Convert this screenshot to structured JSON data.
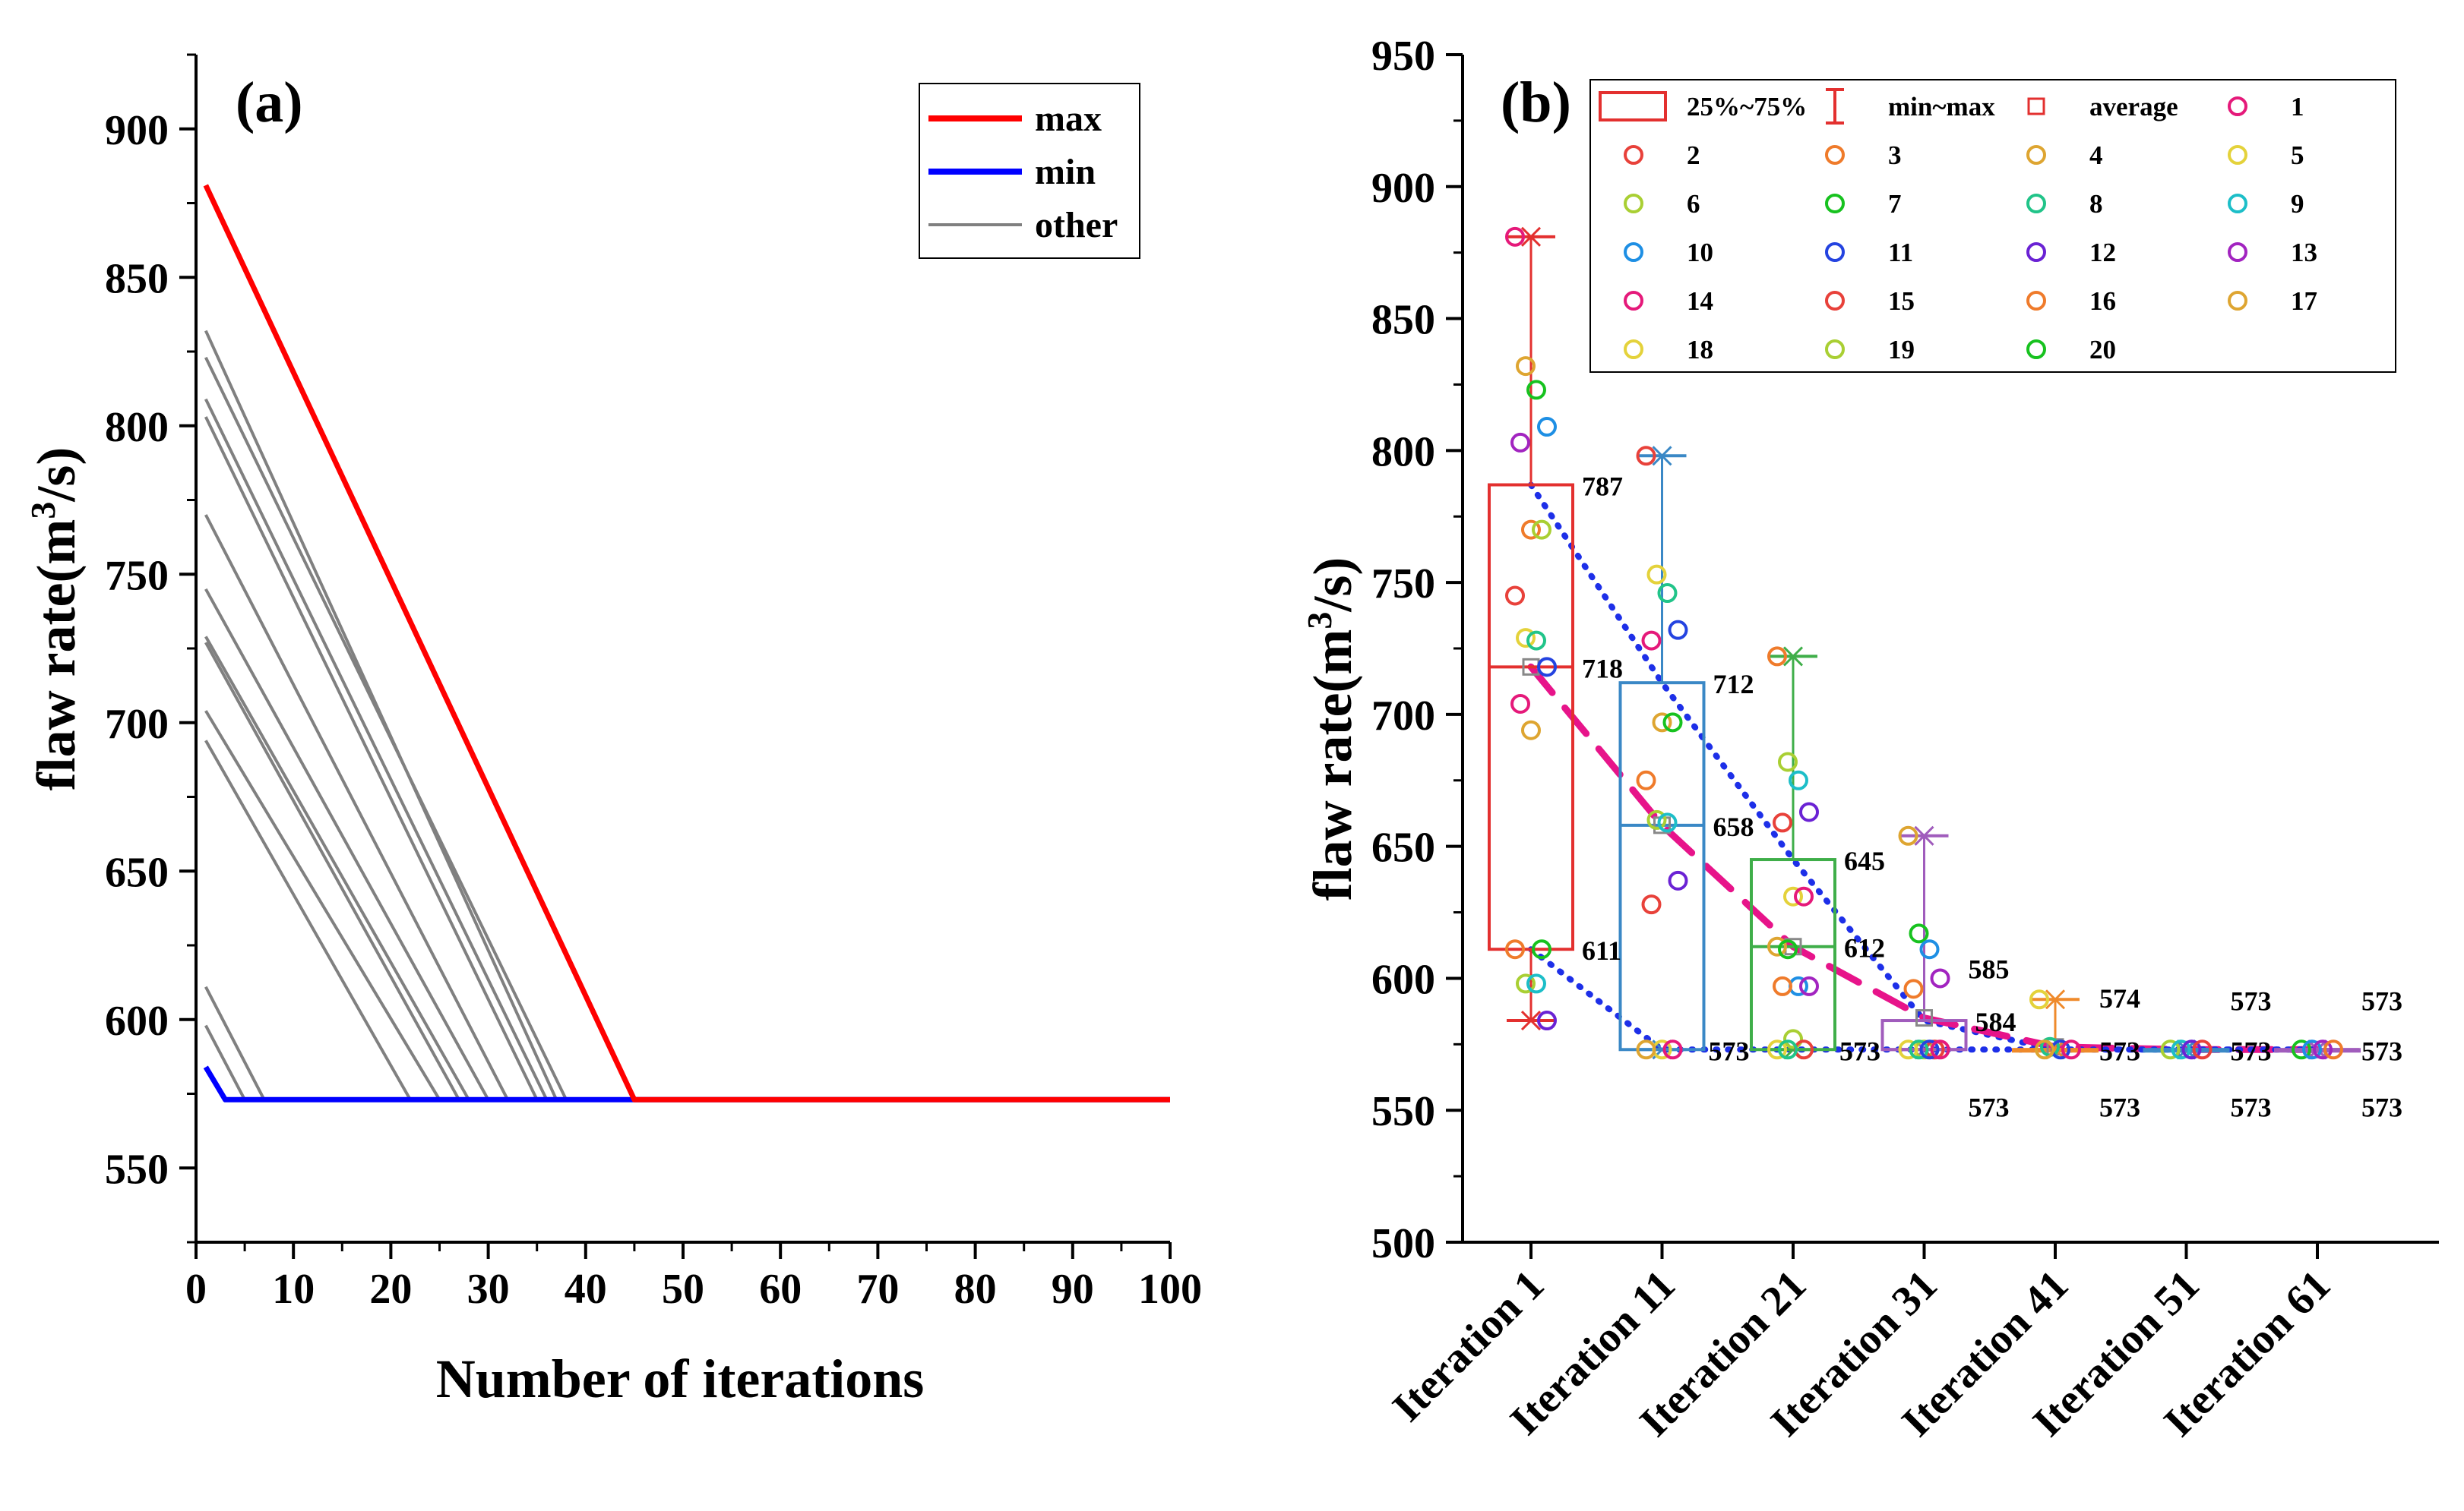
{
  "chart_data": [
    {
      "panel": "(a)",
      "type": "line",
      "xlabel": "Number of iterations",
      "ylabel_main": "flaw rate(m",
      "ylabel_sup": "3",
      "ylabel_end": "/s)",
      "xlim": [
        0,
        100
      ],
      "ylim": [
        525,
        925
      ],
      "xticks": [
        0,
        10,
        20,
        30,
        40,
        50,
        60,
        70,
        80,
        90,
        100
      ],
      "xtick_labels": [
        "0",
        "10",
        "20",
        "30",
        "40",
        "50",
        "60",
        "70",
        "80",
        "90",
        "100"
      ],
      "yticks": [
        550,
        600,
        650,
        700,
        750,
        800,
        850,
        900
      ],
      "ytick_labels": [
        "550",
        "600",
        "650",
        "700",
        "750",
        "800",
        "850",
        "900"
      ],
      "legend": [
        {
          "label": "max",
          "color": "#ff0000"
        },
        {
          "label": "min",
          "color": "#0000ff"
        },
        {
          "label": "other",
          "color": "#808080"
        }
      ],
      "converged_value": 573,
      "series": [
        {
          "name": "max",
          "color": "#ff0000",
          "points": [
            [
              1,
              881
            ],
            [
              45,
              573
            ],
            [
              100,
              573
            ]
          ]
        },
        {
          "name": "min",
          "color": "#0000ff",
          "points": [
            [
              1,
              584
            ],
            [
              3,
              573
            ],
            [
              100,
              573
            ]
          ]
        },
        {
          "name": "other",
          "color": "#808080",
          "points": [
            [
              1,
              832
            ],
            [
              37,
              573
            ],
            [
              100,
              573
            ]
          ]
        },
        {
          "name": "other",
          "color": "#808080",
          "points": [
            [
              1,
              823
            ],
            [
              38,
              573
            ],
            [
              100,
              573
            ]
          ]
        },
        {
          "name": "other",
          "color": "#808080",
          "points": [
            [
              1,
              809
            ],
            [
              36,
              573
            ],
            [
              100,
              573
            ]
          ]
        },
        {
          "name": "other",
          "color": "#808080",
          "points": [
            [
              1,
              803
            ],
            [
              35,
              573
            ],
            [
              100,
              573
            ]
          ]
        },
        {
          "name": "other",
          "color": "#808080",
          "points": [
            [
              1,
              770
            ],
            [
              32,
              573
            ],
            [
              100,
              573
            ]
          ]
        },
        {
          "name": "other",
          "color": "#808080",
          "points": [
            [
              1,
              745
            ],
            [
              30,
              573
            ],
            [
              100,
              573
            ]
          ]
        },
        {
          "name": "other",
          "color": "#808080",
          "points": [
            [
              1,
              729
            ],
            [
              28,
              573
            ],
            [
              100,
              573
            ]
          ]
        },
        {
          "name": "other",
          "color": "#808080",
          "points": [
            [
              1,
              727
            ],
            [
              27,
              573
            ],
            [
              100,
              573
            ]
          ]
        },
        {
          "name": "other",
          "color": "#808080",
          "points": [
            [
              1,
              704
            ],
            [
              25,
              573
            ],
            [
              100,
              573
            ]
          ]
        },
        {
          "name": "other",
          "color": "#808080",
          "points": [
            [
              1,
              694
            ],
            [
              22,
              573
            ],
            [
              100,
              573
            ]
          ]
        },
        {
          "name": "other",
          "color": "#808080",
          "points": [
            [
              1,
              611
            ],
            [
              7,
              573
            ],
            [
              100,
              573
            ]
          ]
        },
        {
          "name": "other",
          "color": "#808080",
          "points": [
            [
              1,
              598
            ],
            [
              5,
              573
            ],
            [
              100,
              573
            ]
          ]
        }
      ]
    },
    {
      "panel": "(b)",
      "type": "box",
      "ylabel_main": "flaw rate(m",
      "ylabel_sup": "3",
      "ylabel_end": "/s)",
      "ylim": [
        500,
        950
      ],
      "yticks": [
        500,
        550,
        600,
        650,
        700,
        750,
        800,
        850,
        900,
        950
      ],
      "ytick_labels": [
        "500",
        "550",
        "600",
        "650",
        "700",
        "750",
        "800",
        "850",
        "900",
        "950"
      ],
      "categories": [
        "Iteration 1",
        "Iteration 11",
        "Iteration 21",
        "Iteration 31",
        "Iteration 41",
        "Iteration 51",
        "Iteration 61"
      ],
      "legend_items": [
        {
          "label": "25%~75%",
          "kind": "box",
          "color": "#e3302f"
        },
        {
          "label": "min~max",
          "kind": "whisker",
          "color": "#e3302f"
        },
        {
          "label": "average",
          "kind": "square",
          "color": "#e3302f"
        },
        {
          "label": "1",
          "kind": "circle",
          "color": "#e5197a"
        },
        {
          "label": "2",
          "kind": "circle",
          "color": "#e8413a"
        },
        {
          "label": "3",
          "kind": "circle",
          "color": "#ef7b2b"
        },
        {
          "label": "4",
          "kind": "circle",
          "color": "#dea531"
        },
        {
          "label": "5",
          "kind": "circle",
          "color": "#e4d23b"
        },
        {
          "label": "6",
          "kind": "circle",
          "color": "#a9cf33"
        },
        {
          "label": "7",
          "kind": "circle",
          "color": "#17c21f"
        },
        {
          "label": "8",
          "kind": "circle",
          "color": "#21c489"
        },
        {
          "label": "9",
          "kind": "circle",
          "color": "#1cbec8"
        },
        {
          "label": "10",
          "kind": "circle",
          "color": "#1e8fe4"
        },
        {
          "label": "11",
          "kind": "circle",
          "color": "#2443e0"
        },
        {
          "label": "12",
          "kind": "circle",
          "color": "#6a22d4"
        },
        {
          "label": "13",
          "kind": "circle",
          "color": "#a224c0"
        },
        {
          "label": "14",
          "kind": "circle",
          "color": "#e5197a"
        },
        {
          "label": "15",
          "kind": "circle",
          "color": "#e8413a"
        },
        {
          "label": "16",
          "kind": "circle",
          "color": "#ef7b2b"
        },
        {
          "label": "17",
          "kind": "circle",
          "color": "#dea531"
        },
        {
          "label": "18",
          "kind": "circle",
          "color": "#e4d23b"
        },
        {
          "label": "19",
          "kind": "circle",
          "color": "#a9cf33"
        },
        {
          "label": "20",
          "kind": "circle",
          "color": "#17c21f"
        }
      ],
      "boxes": [
        {
          "category": "Iteration 1",
          "color": "#e3302f",
          "min": 584,
          "q1": 611,
          "median": 718,
          "q3": 787,
          "max": 881,
          "mean": 718
        },
        {
          "category": "Iteration 11",
          "color": "#3a88c6",
          "min": 573,
          "q1": 573,
          "median": 658,
          "q3": 712,
          "max": 798,
          "mean": 658
        },
        {
          "category": "Iteration 21",
          "color": "#3fae49",
          "min": 573,
          "q1": 573,
          "median": 612,
          "q3": 645,
          "max": 722,
          "mean": 612
        },
        {
          "category": "Iteration 31",
          "color": "#a05cbc",
          "min": 573,
          "q1": 573,
          "median": 573,
          "q3": 584,
          "max": 654,
          "mean": 585
        },
        {
          "category": "Iteration 41",
          "color": "#ef8a2b",
          "min": 573,
          "q1": 573,
          "median": 573,
          "q3": 573,
          "max": 592,
          "mean": 574
        },
        {
          "category": "Iteration 51",
          "color": "#3a88c6",
          "min": 573,
          "q1": 573,
          "median": 573,
          "q3": 573,
          "max": 573,
          "mean": 573
        },
        {
          "category": "Iteration 61",
          "color": "#a05cbc",
          "min": 573,
          "q1": 573,
          "median": 573,
          "q3": 573,
          "max": 573,
          "mean": 573
        }
      ],
      "points": [
        {
          "category": "Iteration 1",
          "values": [
            881,
            832,
            823,
            809,
            803,
            770,
            770,
            745,
            729,
            728,
            718,
            704,
            694,
            611,
            611,
            598,
            598,
            584
          ]
        },
        {
          "category": "Iteration 11",
          "values": [
            798,
            753,
            746,
            732,
            728,
            697,
            697,
            675,
            660,
            659,
            637,
            628,
            573,
            573,
            573
          ]
        },
        {
          "category": "Iteration 21",
          "values": [
            722,
            682,
            675,
            663,
            659,
            631,
            631,
            612,
            611,
            597,
            597,
            597,
            577,
            573,
            573,
            573
          ]
        },
        {
          "category": "Iteration 31",
          "values": [
            654,
            617,
            611,
            600,
            596,
            573,
            573,
            573,
            573,
            573,
            573
          ]
        },
        {
          "category": "Iteration 41",
          "values": [
            592,
            574,
            573,
            573,
            573
          ]
        },
        {
          "category": "Iteration 51",
          "values": [
            573,
            573,
            573,
            573
          ]
        },
        {
          "category": "Iteration 61",
          "values": [
            573,
            573,
            573,
            573
          ]
        }
      ],
      "annotations": [
        {
          "category": "Iteration 1",
          "value": 787,
          "label": "787",
          "pos": "right"
        },
        {
          "category": "Iteration 1",
          "value": 718,
          "label": "718",
          "pos": "right"
        },
        {
          "category": "Iteration 1",
          "value": 611,
          "label": "611",
          "pos": "right"
        },
        {
          "category": "Iteration 11",
          "value": 712,
          "label": "712",
          "pos": "right"
        },
        {
          "category": "Iteration 11",
          "value": 658,
          "label": "658",
          "pos": "right"
        },
        {
          "category": "Iteration 11",
          "value": 573,
          "label": "573",
          "pos": "right"
        },
        {
          "category": "Iteration 21",
          "value": 645,
          "label": "645",
          "pos": "right"
        },
        {
          "category": "Iteration 21",
          "value": 612,
          "label": "612",
          "pos": "right"
        },
        {
          "category": "Iteration 21",
          "value": 573,
          "label": "573",
          "pos": "right"
        },
        {
          "category": "Iteration 31",
          "value": 585,
          "label": "585",
          "pos": "above"
        },
        {
          "category": "Iteration 31",
          "value": 584,
          "label": "584",
          "pos": "right"
        },
        {
          "category": "Iteration 31",
          "value": 573,
          "label": "573",
          "pos": "below"
        },
        {
          "category": "Iteration 41",
          "value": 574,
          "label": "574",
          "pos": "above"
        },
        {
          "category": "Iteration 41",
          "value": 573,
          "label": "573",
          "pos": "right"
        },
        {
          "category": "Iteration 41",
          "value": 573,
          "label": "573",
          "pos": "below"
        },
        {
          "category": "Iteration 51",
          "value": 573,
          "label": "573",
          "pos": "above"
        },
        {
          "category": "Iteration 51",
          "value": 573,
          "label": "573",
          "pos": "right"
        },
        {
          "category": "Iteration 51",
          "value": 573,
          "label": "573",
          "pos": "below"
        },
        {
          "category": "Iteration 61",
          "value": 573,
          "label": "573",
          "pos": "above"
        },
        {
          "category": "Iteration 61",
          "value": 573,
          "label": "573",
          "pos": "right"
        },
        {
          "category": "Iteration 61",
          "value": 573,
          "label": "573",
          "pos": "below"
        }
      ],
      "trend_lines": [
        {
          "name": "max trend",
          "style": "dotted",
          "color": "#1d2fe8",
          "values": [
            787,
            712,
            645,
            584,
            573,
            573,
            573
          ]
        },
        {
          "name": "mean trend",
          "style": "dashed",
          "color": "#e7148a",
          "values": [
            718,
            658,
            612,
            585,
            574,
            573,
            573
          ]
        },
        {
          "name": "min trend",
          "style": "dotted",
          "color": "#1d2fe8",
          "values": [
            611,
            573,
            573,
            573,
            573,
            573,
            573
          ]
        }
      ]
    }
  ]
}
